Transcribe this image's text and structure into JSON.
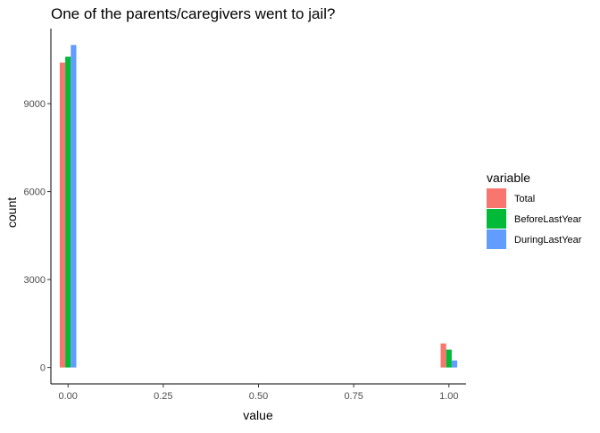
{
  "chart_data": {
    "type": "bar",
    "title": "One of the parents/caregivers went to jail?",
    "xlabel": "value",
    "ylabel": "count",
    "x_ticks": [
      "0.00",
      "0.25",
      "0.50",
      "0.75",
      "1.00"
    ],
    "x_tick_values": [
      0,
      0.25,
      0.5,
      0.75,
      1.0
    ],
    "y_ticks": [
      "0",
      "3000",
      "6000",
      "9000"
    ],
    "y_tick_values": [
      0,
      3000,
      6000,
      9000
    ],
    "xlim": [
      -0.045,
      1.045
    ],
    "ylim": [
      -560,
      11560
    ],
    "grid": false,
    "legend_title": "variable",
    "legend_position": "right",
    "categories": [
      0,
      1
    ],
    "series": [
      {
        "name": "Total",
        "color": "#F8766D",
        "values": [
          10400,
          820
        ]
      },
      {
        "name": "BeforeLastYear",
        "color": "#00BA38",
        "values": [
          10600,
          610
        ]
      },
      {
        "name": "DuringLastYear",
        "color": "#619CFF",
        "values": [
          11000,
          240
        ]
      }
    ]
  }
}
